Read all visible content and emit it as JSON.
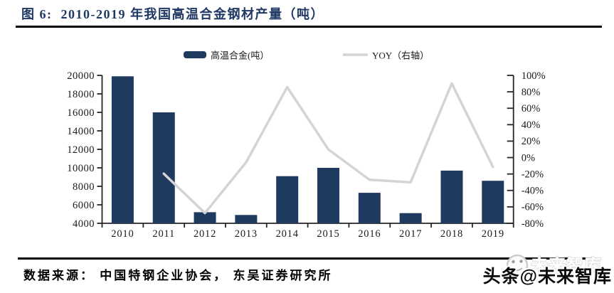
{
  "figure": {
    "title": "图 6:  2010-2019 年我国高温合金钢材产量（吨）",
    "source": "数据来源： 中国特钢企业协会， 东吴证券研究所",
    "watermark": {
      "main": "头条@未来智库",
      "ghost": "未来智库",
      "icon": "smiley-face-icon"
    }
  },
  "colors": {
    "title": "#1F3864",
    "bar": "#1F3A5F",
    "line": "#D4D4D4",
    "axis": "#262626",
    "rule": "#000000"
  },
  "chart_data": {
    "type": "bar",
    "title": "2010-2019 年我国高温合金钢材产量（吨）",
    "categories": [
      "2010",
      "2011",
      "2012",
      "2013",
      "2014",
      "2015",
      "2016",
      "2017",
      "2018",
      "2019"
    ],
    "series": [
      {
        "name": "高温合金(吨）",
        "type": "bar",
        "axis": "left",
        "color": "#1F3A5F",
        "values": [
          19900,
          16000,
          5200,
          4900,
          9100,
          10000,
          7300,
          5100,
          9700,
          8600
        ]
      },
      {
        "name": "YOY（右轴）",
        "type": "line",
        "axis": "right",
        "color": "#D4D4D4",
        "unit": "%",
        "values": [
          null,
          -19.6,
          -67.5,
          -5.8,
          85.7,
          9.9,
          -27.0,
          -30.1,
          90.2,
          -11.3
        ]
      }
    ],
    "left_axis": {
      "min": 4000,
      "max": 20000,
      "step": 2000
    },
    "right_axis": {
      "min": -80,
      "max": 100,
      "step": 20,
      "suffix": "%"
    },
    "legend_position": "top",
    "grid": false
  }
}
